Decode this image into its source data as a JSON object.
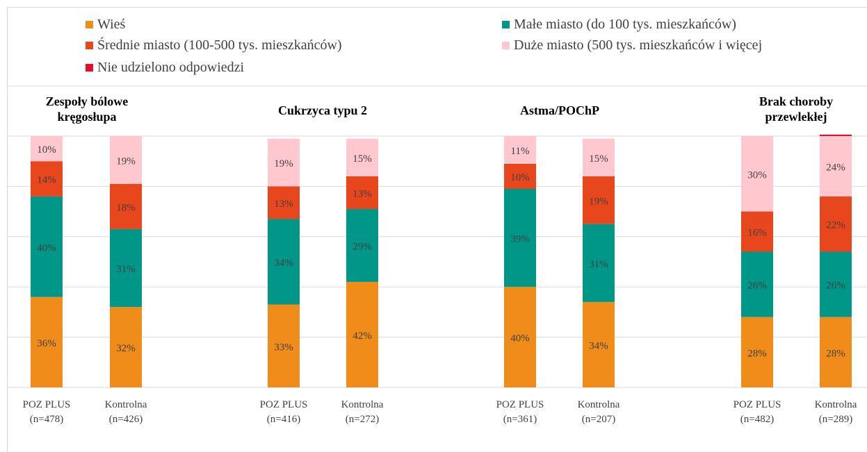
{
  "chart_data": {
    "type": "bar",
    "stacked": true,
    "ylim": [
      0,
      100
    ],
    "grid": true,
    "legend_placement": "top",
    "colors": {
      "wies": "#f08c1a",
      "male": "#009688",
      "srednie": "#e8461c",
      "duze": "#ffc7ce",
      "nie": "#e0102e",
      "grid": "#d9d9d9",
      "label": "#404040"
    },
    "series": [
      {
        "key": "wies",
        "name": "Wieś"
      },
      {
        "key": "male",
        "name": "Małe miasto (do 100 tys. mieszkańców)"
      },
      {
        "key": "srednie",
        "name": "Średnie miasto (100-500 tys. mieszkańców)"
      },
      {
        "key": "duze",
        "name": "Duże miasto (500 tys. mieszkańców i więcej"
      },
      {
        "key": "nie",
        "name": "Nie udzielono odpowiedzi"
      }
    ],
    "groups": [
      {
        "title": [
          "Zespoły bólowe",
          "kręgosłupa"
        ],
        "bars": [
          {
            "label": [
              "POZ PLUS",
              "(n=478)"
            ],
            "values": {
              "wies": 36,
              "male": 40,
              "srednie": 14,
              "duze": 10,
              "nie": 0
            },
            "labels": {
              "wies": "36%",
              "male": "40%",
              "srednie": "14%",
              "duze": "10%"
            }
          },
          {
            "label": [
              "Kontrolna",
              "(n=426)"
            ],
            "values": {
              "wies": 32,
              "male": 31,
              "srednie": 18,
              "duze": 19,
              "nie": 0
            },
            "labels": {
              "wies": "32%",
              "male": "31%",
              "srednie": "18%",
              "duze": "19%"
            }
          }
        ]
      },
      {
        "title": [
          "Cukrzyca typu 2"
        ],
        "bars": [
          {
            "label": [
              "POZ PLUS",
              "(n=416)"
            ],
            "values": {
              "wies": 33,
              "male": 34,
              "srednie": 13,
              "duze": 19,
              "nie": 0
            },
            "labels": {
              "wies": "33%",
              "male": "34%",
              "srednie": "13%",
              "duze": "19%"
            }
          },
          {
            "label": [
              "Kontrolna",
              "(n=272)"
            ],
            "values": {
              "wies": 42,
              "male": 29,
              "srednie": 13,
              "duze": 15,
              "nie": 0
            },
            "labels": {
              "wies": "42%",
              "male": "29%",
              "srednie": "13%",
              "duze": "15%"
            }
          }
        ]
      },
      {
        "title": [
          "Astma/POChP"
        ],
        "bars": [
          {
            "label": [
              "POZ PLUS",
              "(n=361)"
            ],
            "values": {
              "wies": 40,
              "male": 39,
              "srednie": 10,
              "duze": 11,
              "nie": 0
            },
            "labels": {
              "wies": "40%",
              "male": "39%",
              "srednie": "10%",
              "duze": "11%"
            }
          },
          {
            "label": [
              "Kontrolna",
              "(n=207)"
            ],
            "values": {
              "wies": 34,
              "male": 31,
              "srednie": 19,
              "duze": 15,
              "nie": 0
            },
            "labels": {
              "wies": "34%",
              "male": "31%",
              "srednie": "19%",
              "duze": "15%"
            }
          }
        ]
      },
      {
        "title": [
          "Brak choroby",
          "przewlekłej"
        ],
        "bars": [
          {
            "label": [
              "POZ PLUS",
              "(n=482)"
            ],
            "values": {
              "wies": 28,
              "male": 26,
              "srednie": 16,
              "duze": 30,
              "nie": 0
            },
            "labels": {
              "wies": "28%",
              "male": "26%",
              "srednie": "16%",
              "duze": "30%"
            }
          },
          {
            "label": [
              "Kontrolna",
              "(n=289)"
            ],
            "values": {
              "wies": 28,
              "male": 26,
              "srednie": 22,
              "duze": 24,
              "nie": 0.6
            },
            "labels": {
              "wies": "28%",
              "male": "26%",
              "srednie": "22%",
              "duze": "24%"
            }
          }
        ]
      }
    ]
  }
}
